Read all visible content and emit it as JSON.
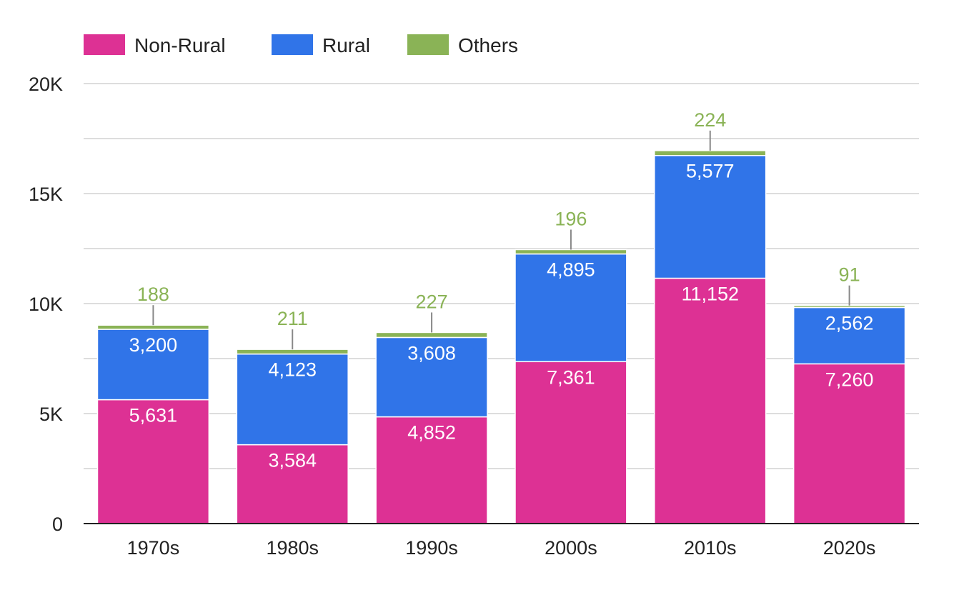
{
  "chart_data": {
    "type": "bar",
    "stacked": true,
    "categories": [
      "1970s",
      "1980s",
      "1990s",
      "2000s",
      "2010s",
      "2020s"
    ],
    "series": [
      {
        "name": "Non-Rural",
        "color": "#DD3194",
        "values": [
          5631,
          3584,
          4852,
          7361,
          11152,
          7260
        ],
        "labels": [
          "5,631",
          "3,584",
          "4,852",
          "7,361",
          "11,152",
          "7,260"
        ]
      },
      {
        "name": "Rural",
        "color": "#3074E8",
        "values": [
          3200,
          4123,
          3608,
          4895,
          5577,
          2562
        ],
        "labels": [
          "3,200",
          "4,123",
          "3,608",
          "4,895",
          "5,577",
          "2,562"
        ]
      },
      {
        "name": "Others",
        "color": "#8AB356",
        "values": [
          188,
          211,
          227,
          196,
          224,
          91
        ],
        "labels": [
          "188",
          "211",
          "227",
          "196",
          "224",
          "91"
        ]
      }
    ],
    "ylim": [
      0,
      20000
    ],
    "yticks": [
      0,
      5000,
      10000,
      15000,
      20000
    ],
    "ytick_labels": [
      "0",
      "5K",
      "10K",
      "15K",
      "20K"
    ],
    "grid": true,
    "legend_position": "top-left",
    "xlabel": "",
    "ylabel": "",
    "title": ""
  }
}
